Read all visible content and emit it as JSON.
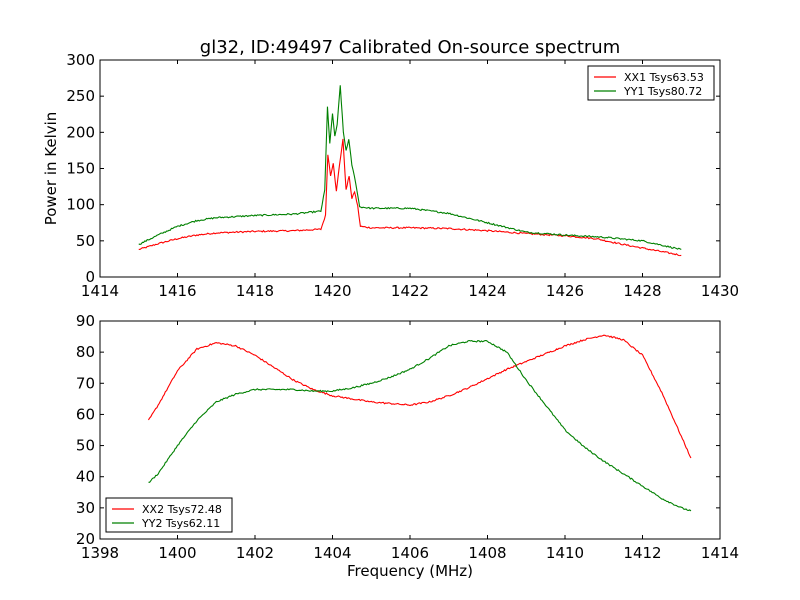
{
  "chart_data": [
    {
      "type": "line",
      "title": "gl32, ID:49497 Calibrated On-source spectrum",
      "xlabel": "",
      "ylabel": "Power in Kelvin",
      "xlim": [
        1414,
        1430
      ],
      "ylim": [
        0,
        300
      ],
      "xticks": [
        "1414",
        "1416",
        "1418",
        "1420",
        "1422",
        "1424",
        "1426",
        "1428",
        "1430"
      ],
      "yticks": [
        "0",
        "50",
        "100",
        "150",
        "200",
        "250",
        "300"
      ],
      "legend": "top-right",
      "grid": false,
      "series": [
        {
          "name": "XX1 Tsys63.53",
          "color": "#ff0000",
          "x": [
            1415.0,
            1415.5,
            1416.0,
            1416.5,
            1417.0,
            1418.0,
            1419.0,
            1419.7,
            1419.82,
            1419.88,
            1419.95,
            1420.02,
            1420.1,
            1420.18,
            1420.27,
            1420.35,
            1420.43,
            1420.5,
            1420.57,
            1420.65,
            1420.72,
            1421.0,
            1422.0,
            1423.0,
            1424.0,
            1425.0,
            1426.0,
            1426.8,
            1427.5,
            1428.0,
            1429.0
          ],
          "y": [
            38,
            46,
            53,
            58,
            61,
            63,
            64,
            66,
            85,
            170,
            140,
            158,
            118,
            155,
            190,
            120,
            140,
            108,
            118,
            98,
            70,
            68,
            68,
            67,
            64,
            60,
            57,
            53,
            45,
            40,
            30
          ]
        },
        {
          "name": "YY1 Tsys80.72",
          "color": "#008000",
          "x": [
            1415.0,
            1415.5,
            1416.0,
            1416.5,
            1417.0,
            1418.0,
            1419.0,
            1419.7,
            1419.8,
            1419.87,
            1419.93,
            1420.0,
            1420.06,
            1420.12,
            1420.2,
            1420.28,
            1420.35,
            1420.42,
            1420.5,
            1420.6,
            1420.7,
            1421.0,
            1422.0,
            1423.0,
            1424.0,
            1425.0,
            1426.0,
            1427.0,
            1428.0,
            1429.0
          ],
          "y": [
            45,
            58,
            70,
            78,
            82,
            85,
            87,
            91,
            120,
            235,
            185,
            225,
            195,
            210,
            265,
            200,
            175,
            190,
            155,
            130,
            97,
            95,
            95,
            88,
            75,
            62,
            58,
            55,
            50,
            38
          ]
        }
      ]
    },
    {
      "type": "line",
      "title": "",
      "xlabel": "Frequency (MHz)",
      "ylabel": "",
      "xlim": [
        1398,
        1414
      ],
      "ylim": [
        20,
        90
      ],
      "xticks": [
        "1398",
        "1400",
        "1402",
        "1404",
        "1406",
        "1408",
        "1410",
        "1412",
        "1414"
      ],
      "yticks": [
        "20",
        "30",
        "40",
        "50",
        "60",
        "70",
        "80",
        "90"
      ],
      "legend": "bottom-left",
      "grid": false,
      "series": [
        {
          "name": "XX2 Tsys72.48",
          "color": "#ff0000",
          "x": [
            1399.25,
            1399.5,
            1400.0,
            1400.5,
            1401.0,
            1401.5,
            1402.0,
            1402.5,
            1403.0,
            1403.5,
            1404.0,
            1404.5,
            1405.0,
            1405.5,
            1406.0,
            1406.5,
            1407.0,
            1407.5,
            1408.0,
            1408.5,
            1409.0,
            1409.5,
            1410.0,
            1410.5,
            1411.0,
            1411.5,
            1412.0,
            1412.5,
            1413.0,
            1413.25
          ],
          "y": [
            58,
            63,
            74,
            81,
            83,
            82,
            79,
            75,
            71,
            68,
            66,
            65,
            64,
            63.5,
            63,
            64,
            66,
            68.5,
            71.5,
            74.5,
            77,
            79.5,
            82,
            84,
            85.5,
            84,
            79,
            67,
            53,
            46
          ]
        },
        {
          "name": "YY2 Tsys62.11",
          "color": "#008000",
          "x": [
            1399.25,
            1399.5,
            1400.0,
            1400.5,
            1401.0,
            1401.5,
            1402.0,
            1402.5,
            1403.0,
            1403.5,
            1404.0,
            1404.5,
            1405.0,
            1405.5,
            1406.0,
            1406.5,
            1407.0,
            1407.5,
            1408.0,
            1408.5,
            1409.0,
            1409.5,
            1410.0,
            1410.5,
            1411.0,
            1411.5,
            1412.0,
            1412.5,
            1413.0,
            1413.25
          ],
          "y": [
            38,
            41,
            50,
            58,
            64,
            66.5,
            68,
            68,
            68,
            67.5,
            67.5,
            68.5,
            70,
            72,
            74.5,
            78,
            82,
            83.5,
            83.5,
            80,
            71,
            63,
            55,
            49.5,
            45,
            41,
            37,
            33,
            30,
            29
          ]
        }
      ]
    }
  ]
}
